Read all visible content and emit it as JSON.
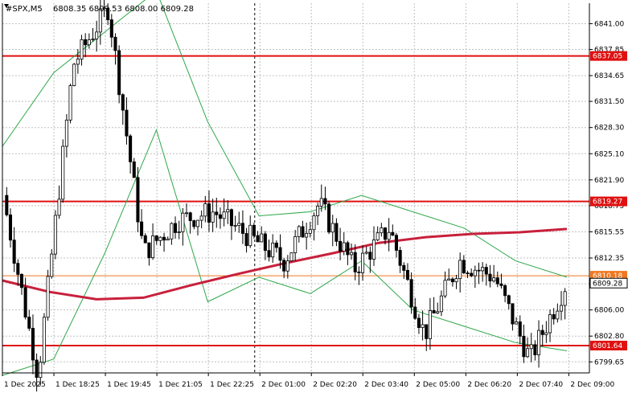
{
  "header": {
    "symbol": "#SPX,M5",
    "ohlc": "6808.35 6809.53 6808.00 6809.28"
  },
  "colors": {
    "background": "#ffffff",
    "grid": "#c0c0c0",
    "candle": "#000000",
    "support_resistance": "#e01010",
    "bid_line": "#f07820",
    "moving_average": "#c8203c",
    "bollinger": "#2ea84a"
  },
  "chart_data": {
    "type": "candlestick",
    "title": "",
    "xlabel": "",
    "ylabel": "",
    "ylim": [
      6798.3,
      6843.5
    ],
    "grid": true,
    "y_ticks": [
      "6841.00",
      "6837.85",
      "6834.65",
      "6831.50",
      "6828.30",
      "6825.10",
      "6821.90",
      "6818.75",
      "6815.55",
      "6812.35",
      "6809.20",
      "6806.00",
      "6802.80",
      "6799.65"
    ],
    "x_ticks": [
      "1 Dec 2025",
      "1 Dec 18:25",
      "1 Dec 19:45",
      "1 Dec 21:05",
      "1 Dec 22:25",
      "2 Dec 01:00",
      "2 Dec 02:20",
      "2 Dec 03:40",
      "2 Dec 05:00",
      "2 Dec 06:20",
      "2 Dec 07:40",
      "2 Dec 09:00"
    ],
    "horizontal_levels": [
      {
        "value": 6837.05,
        "label": "6837.05",
        "kind": "resistance"
      },
      {
        "value": 6819.27,
        "label": "6819.27",
        "kind": "resistance"
      },
      {
        "value": 6810.18,
        "label": "6810.18",
        "kind": "bid"
      },
      {
        "value": 6801.64,
        "label": "6801.64",
        "kind": "support"
      }
    ],
    "current_price": {
      "value": 6809.28,
      "label": "6809.28"
    },
    "session_separator_index": 4.9,
    "moving_average": [
      6809.6,
      6808.2,
      6807.3,
      6807.5,
      6809.0,
      6810.4,
      6811.7,
      6812.9,
      6814.2,
      6814.9,
      6815.3,
      6815.5,
      6815.9
    ],
    "bollinger_upper": [
      6826,
      6835,
      6840,
      6845,
      6829,
      6817.5,
      6818,
      6820,
      6818,
      6816,
      6812,
      6810
    ],
    "bollinger_lower": [
      6798,
      6800,
      6813,
      6828,
      6807,
      6810,
      6808,
      6812,
      6806,
      6804,
      6802,
      6801
    ],
    "key_prices": [
      6820,
      6798,
      6836,
      6843,
      6813,
      6817,
      6818,
      6815,
      6812,
      6819,
      6811,
      6816,
      6803,
      6812,
      6810,
      6800,
      6809
    ]
  }
}
